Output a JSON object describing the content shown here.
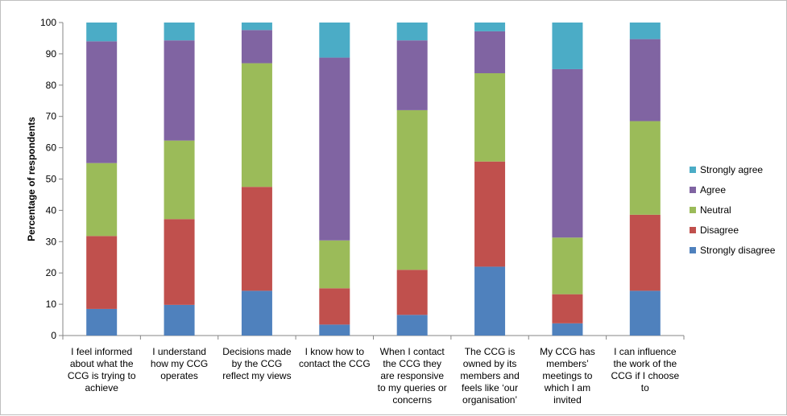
{
  "chart_data": {
    "type": "bar",
    "stacked": true,
    "title": "",
    "xlabel": "",
    "ylabel": "Percentage of respondents",
    "ylim": [
      0,
      100
    ],
    "yticks": [
      0,
      10,
      20,
      30,
      40,
      50,
      60,
      70,
      80,
      90,
      100
    ],
    "grid": false,
    "legend_position": "right",
    "categories": [
      [
        "I feel informed",
        "about what the",
        "CCG is trying to",
        "achieve"
      ],
      [
        "I understand",
        "how my CCG",
        "operates"
      ],
      [
        "Decisions made",
        "by the CCG",
        "reflect my views"
      ],
      [
        "I know how to",
        "contact the CCG"
      ],
      [
        "When I contact",
        "the CCG they",
        "are responsive",
        "to my queries or",
        "concerns"
      ],
      [
        "The CCG is",
        "owned by its",
        "members and",
        "feels like ‘our",
        "organisation’"
      ],
      [
        "My CCG has",
        "members’",
        "meetings to",
        "which I am",
        "invited"
      ],
      [
        "I can influence",
        "the work of the",
        "CCG if I choose",
        "to"
      ]
    ],
    "series": [
      {
        "name": "Strongly disagree",
        "color": "#4f81bd",
        "values": [
          8.5,
          9.8,
          14.3,
          3.5,
          6.6,
          22.0,
          3.9,
          14.3
        ]
      },
      {
        "name": "Disagree",
        "color": "#c0504d",
        "values": [
          23.3,
          27.4,
          33.2,
          11.6,
          14.4,
          33.6,
          9.3,
          24.3
        ]
      },
      {
        "name": "Neutral",
        "color": "#9bbb59",
        "values": [
          23.3,
          25.1,
          39.5,
          15.3,
          51.0,
          28.2,
          18.1,
          29.9
        ]
      },
      {
        "name": "Agree",
        "color": "#8064a2",
        "values": [
          38.9,
          32.0,
          10.6,
          58.4,
          22.3,
          13.4,
          53.8,
          26.2
        ]
      },
      {
        "name": "Strongly agree",
        "color": "#4bacc6",
        "values": [
          6.0,
          5.7,
          2.4,
          11.2,
          5.7,
          2.8,
          14.9,
          5.3
        ]
      }
    ]
  }
}
